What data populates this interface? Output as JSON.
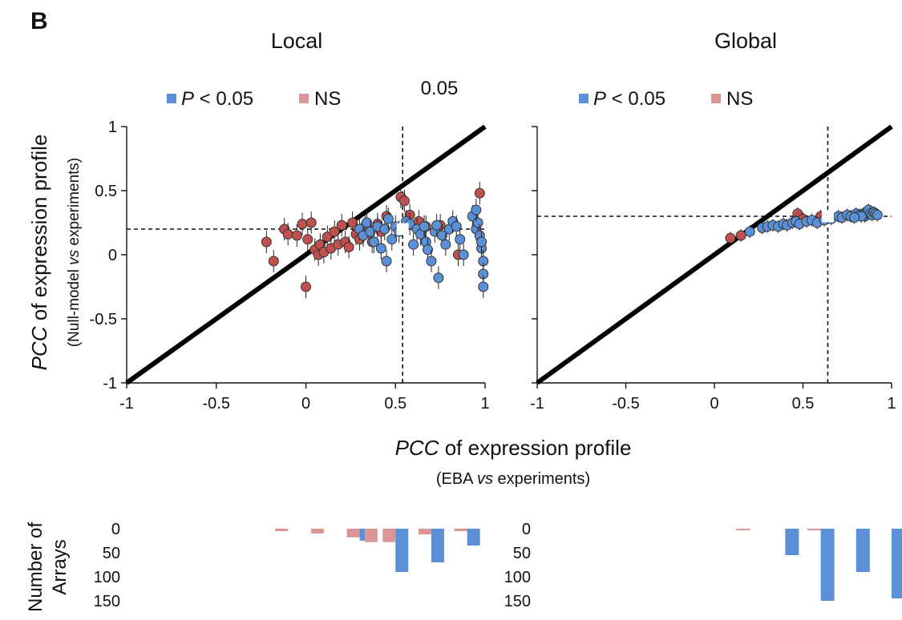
{
  "figure": {
    "panel_letter": "B",
    "x_label_main": "PCC",
    "x_label_rest": " of expression profile",
    "x_sub_1": "(EBA ",
    "x_sub_vs": "vs",
    "x_sub_2": " experiments)",
    "y_label_main": "PCC",
    "y_label_rest": " of expression profile",
    "y_sub_1": "(Null-model ",
    "y_sub_vs": "vs",
    "y_sub_2": " experiments)",
    "hist_ylabel_1": "Number of",
    "hist_ylabel_2": "Arrays"
  },
  "colors": {
    "sig": "#5b8fd6",
    "ns": "#c0504d",
    "sig_bar": "#5b8fd6",
    "ns_bar": "#d99694"
  },
  "chart_data": [
    {
      "type": "scatter",
      "title": "Local",
      "annotation": "0.05",
      "legend": [
        "P < 0.05",
        "NS"
      ],
      "legend_position": "top",
      "xlim": [
        -1,
        1
      ],
      "ylim": [
        -1,
        1
      ],
      "x_ticks": [
        "-1",
        "-0.5",
        "0",
        "0.5",
        "1"
      ],
      "y_ticks": [
        "1",
        "0.5",
        "0",
        "-0.5",
        "-1"
      ],
      "diagonal": true,
      "vline_x": 0.54,
      "hline_y": 0.2,
      "median_point": [
        0.54,
        0.2
      ],
      "series": [
        {
          "name": "NS",
          "points": [
            [
              -0.22,
              0.1
            ],
            [
              -0.18,
              -0.05
            ],
            [
              -0.12,
              0.2
            ],
            [
              -0.1,
              0.16
            ],
            [
              -0.05,
              0.15
            ],
            [
              -0.02,
              0.24
            ],
            [
              0.0,
              -0.25
            ],
            [
              0.01,
              0.12
            ],
            [
              0.03,
              0.25
            ],
            [
              0.05,
              0.04
            ],
            [
              0.07,
              0.0
            ],
            [
              0.08,
              0.08
            ],
            [
              0.1,
              0.02
            ],
            [
              0.12,
              0.14
            ],
            [
              0.14,
              0.05
            ],
            [
              0.16,
              0.18
            ],
            [
              0.18,
              0.08
            ],
            [
              0.2,
              0.23
            ],
            [
              0.22,
              0.1
            ],
            [
              0.24,
              0.06
            ],
            [
              0.26,
              0.25
            ],
            [
              0.28,
              0.16
            ],
            [
              0.3,
              0.12
            ],
            [
              0.33,
              0.22
            ],
            [
              0.35,
              0.2
            ],
            [
              0.37,
              0.1
            ],
            [
              0.4,
              0.24
            ],
            [
              0.42,
              0.18
            ],
            [
              0.45,
              0.3
            ],
            [
              0.53,
              0.45
            ],
            [
              0.55,
              0.42
            ],
            [
              0.58,
              0.31
            ],
            [
              0.63,
              0.26
            ],
            [
              0.67,
              0.22
            ],
            [
              0.75,
              0.23
            ],
            [
              0.85,
              0.0
            ],
            [
              0.97,
              0.48
            ]
          ]
        },
        {
          "name": "P < 0.05",
          "points": [
            [
              0.3,
              0.2
            ],
            [
              0.32,
              0.15
            ],
            [
              0.34,
              0.25
            ],
            [
              0.36,
              0.18
            ],
            [
              0.38,
              0.1
            ],
            [
              0.4,
              0.22
            ],
            [
              0.42,
              0.05
            ],
            [
              0.44,
              0.2
            ],
            [
              0.45,
              -0.05
            ],
            [
              0.46,
              0.28
            ],
            [
              0.48,
              0.12
            ],
            [
              0.5,
              0.22
            ],
            [
              0.52,
              0.18
            ],
            [
              0.56,
              0.26
            ],
            [
              0.58,
              0.24
            ],
            [
              0.6,
              0.08
            ],
            [
              0.62,
              0.2
            ],
            [
              0.64,
              0.16
            ],
            [
              0.66,
              0.22
            ],
            [
              0.67,
              0.1
            ],
            [
              0.68,
              0.04
            ],
            [
              0.7,
              -0.05
            ],
            [
              0.72,
              0.18
            ],
            [
              0.73,
              0.23
            ],
            [
              0.74,
              -0.18
            ],
            [
              0.76,
              0.15
            ],
            [
              0.78,
              0.08
            ],
            [
              0.8,
              0.2
            ],
            [
              0.82,
              0.26
            ],
            [
              0.84,
              0.22
            ],
            [
              0.86,
              0.12
            ],
            [
              0.88,
              0.0
            ],
            [
              0.93,
              0.3
            ],
            [
              0.95,
              0.2
            ],
            [
              0.96,
              0.25
            ],
            [
              0.97,
              0.15
            ],
            [
              0.98,
              0.05
            ],
            [
              0.99,
              -0.05
            ],
            [
              0.99,
              -0.15
            ],
            [
              0.99,
              -0.25
            ],
            [
              0.95,
              0.35
            ],
            [
              0.98,
              0.1
            ]
          ]
        }
      ]
    },
    {
      "type": "scatter",
      "title": "Global",
      "legend": [
        "P < 0.05",
        "NS"
      ],
      "legend_position": "top",
      "xlim": [
        -1,
        1
      ],
      "ylim": [
        -1,
        1
      ],
      "x_ticks": [
        "-1",
        "-0.5",
        "0",
        "0.5",
        "1"
      ],
      "diagonal": true,
      "vline_x": 0.64,
      "hline_y": 0.3,
      "median_point": [
        0.64,
        0.3
      ],
      "series": [
        {
          "name": "NS",
          "points": [
            [
              0.09,
              0.13
            ],
            [
              0.15,
              0.15
            ],
            [
              0.47,
              0.32
            ],
            [
              0.5,
              0.28
            ],
            [
              0.6,
              0.3
            ]
          ]
        },
        {
          "name": "P < 0.05",
          "points": [
            [
              0.2,
              0.18
            ],
            [
              0.27,
              0.21
            ],
            [
              0.3,
              0.22
            ],
            [
              0.33,
              0.23
            ],
            [
              0.36,
              0.22
            ],
            [
              0.39,
              0.24
            ],
            [
              0.41,
              0.23
            ],
            [
              0.44,
              0.25
            ],
            [
              0.46,
              0.26
            ],
            [
              0.48,
              0.24
            ],
            [
              0.52,
              0.26
            ],
            [
              0.55,
              0.27
            ],
            [
              0.58,
              0.25
            ],
            [
              0.62,
              0.27
            ],
            [
              0.66,
              0.28
            ],
            [
              0.7,
              0.3
            ],
            [
              0.72,
              0.29
            ],
            [
              0.75,
              0.31
            ],
            [
              0.77,
              0.3
            ],
            [
              0.8,
              0.32
            ],
            [
              0.82,
              0.31
            ],
            [
              0.84,
              0.32
            ],
            [
              0.85,
              0.3
            ],
            [
              0.86,
              0.33
            ],
            [
              0.87,
              0.35
            ],
            [
              0.88,
              0.32
            ],
            [
              0.89,
              0.31
            ],
            [
              0.9,
              0.33
            ],
            [
              0.91,
              0.32
            ],
            [
              0.92,
              0.31
            ],
            [
              0.83,
              0.3
            ],
            [
              0.79,
              0.29
            ]
          ]
        }
      ]
    },
    {
      "type": "bar",
      "ylabel": "Number of Arrays",
      "y_ticks": [
        "0",
        "50",
        "100",
        "150"
      ],
      "ylim": [
        0,
        150
      ],
      "orientation": "downward",
      "x_positions": [
        -0.1,
        0.0,
        0.1,
        0.2,
        0.3,
        0.4,
        0.5,
        0.6,
        0.7,
        0.8,
        0.9
      ],
      "series": [
        {
          "name": "P < 0.05",
          "values": [
            0,
            0,
            0,
            0,
            25,
            0,
            90,
            0,
            70,
            0,
            35
          ]
        },
        {
          "name": "NS",
          "values": [
            5,
            0,
            10,
            0,
            18,
            28,
            28,
            0,
            12,
            0,
            5
          ]
        }
      ]
    },
    {
      "type": "bar",
      "y_ticks": [
        "0",
        "50",
        "100",
        "150"
      ],
      "ylim": [
        0,
        150
      ],
      "orientation": "downward",
      "x_positions": [
        0.2,
        0.4,
        0.6,
        0.8,
        1.0
      ],
      "series": [
        {
          "name": "P < 0.05",
          "values": [
            0,
            55,
            150,
            90,
            145
          ]
        },
        {
          "name": "NS",
          "values": [
            3,
            0,
            3,
            0,
            0
          ]
        }
      ]
    }
  ]
}
